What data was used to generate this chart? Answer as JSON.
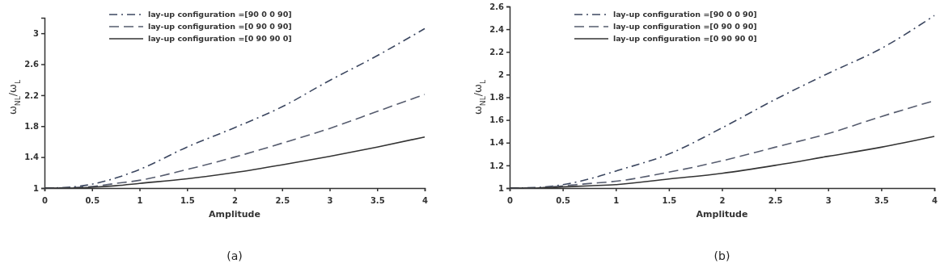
{
  "chart_data": [
    {
      "type": "line",
      "xlabel": "Amplitude",
      "ylabel": "ω$_{NL}$/ω$_{L}$",
      "x": [
        0,
        0.25,
        0.5,
        0.75,
        1,
        1.5,
        2,
        2.5,
        3,
        3.5,
        4
      ],
      "xlim": [
        0,
        4
      ],
      "xticks": [
        0,
        0.5,
        1,
        1.5,
        2,
        2.5,
        3,
        3.5,
        4
      ],
      "ylim": [
        1,
        3.2
      ],
      "yticks": [
        1,
        1.4,
        1.8,
        2.2,
        2.6,
        3
      ],
      "legend": "top",
      "annotations": [
        "(a)"
      ],
      "series": [
        {
          "name": "lay-up configuration =[90 0 0 90]",
          "color": "#3c4760",
          "line_style": "dashdot",
          "values": [
            1,
            1.01,
            1.05,
            1.13,
            1.24,
            1.53,
            1.78,
            2.05,
            2.39,
            2.71,
            3.06
          ]
        },
        {
          "name": "lay-up configuration =[0 90 0 90]",
          "color": "#565c6e",
          "line_style": "dashed",
          "values": [
            1,
            1.005,
            1.02,
            1.06,
            1.1,
            1.24,
            1.4,
            1.58,
            1.77,
            1.99,
            2.21
          ]
        },
        {
          "name": "lay-up configuration =[0 90 90 0]",
          "color": "#333333",
          "line_style": "solid",
          "values": [
            1,
            1,
            1.01,
            1.03,
            1.06,
            1.12,
            1.2,
            1.3,
            1.41,
            1.53,
            1.66
          ]
        }
      ]
    },
    {
      "type": "line",
      "xlabel": "Amplitude",
      "ylabel": "ω$_{NL}$/ω$_{L}$",
      "x": [
        0,
        0.25,
        0.5,
        0.75,
        1,
        1.5,
        2,
        2.5,
        3,
        3.5,
        4
      ],
      "xlim": [
        0,
        4
      ],
      "xticks": [
        0,
        0.5,
        1,
        1.5,
        2,
        2.5,
        3,
        3.5,
        4
      ],
      "ylim": [
        1,
        2.6
      ],
      "yticks": [
        1,
        1.2,
        1.4,
        1.6,
        1.8,
        2,
        2.2,
        2.4,
        2.6
      ],
      "legend": "top",
      "annotations": [
        "(b)"
      ],
      "series": [
        {
          "name": "lay-up configuration =[90 0 0 90]",
          "color": "#3c4760",
          "line_style": "dashdot",
          "values": [
            1,
            1.005,
            1.03,
            1.08,
            1.15,
            1.3,
            1.53,
            1.78,
            2.01,
            2.23,
            2.52
          ]
        },
        {
          "name": "lay-up configuration =[0 90 0 90]",
          "color": "#565c6e",
          "line_style": "dashed",
          "values": [
            1,
            1,
            1.02,
            1.04,
            1.06,
            1.14,
            1.24,
            1.36,
            1.48,
            1.63,
            1.77
          ]
        },
        {
          "name": "lay-up configuration =[0 90 90 0]",
          "color": "#333333",
          "line_style": "solid",
          "values": [
            1,
            1,
            1.01,
            1.02,
            1.03,
            1.08,
            1.13,
            1.2,
            1.28,
            1.36,
            1.455
          ]
        }
      ]
    }
  ]
}
